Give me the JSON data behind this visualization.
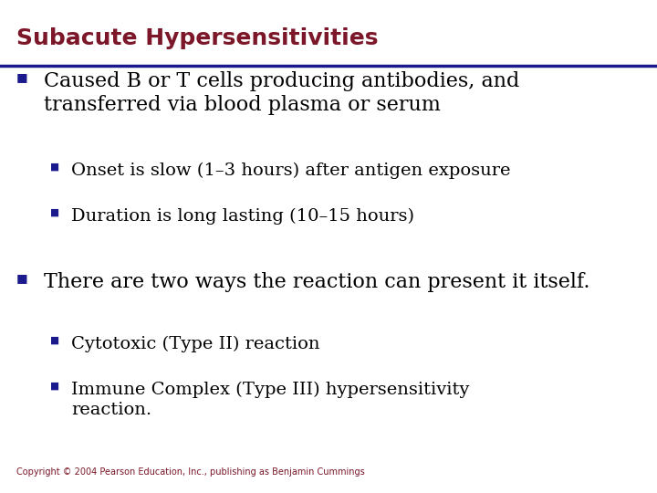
{
  "title": "Subacute Hypersensitivities",
  "title_color": "#7B1728",
  "title_fontsize": 18,
  "line_color": "#1A1A8C",
  "bg_color": "#FFFFFF",
  "body_text_color": "#000000",
  "bullet_color": "#1A1A8C",
  "copyright": "Copyright © 2004 Pearson Education, Inc., publishing as Benjamin Cummings",
  "copyright_color": "#7B1728",
  "copyright_fontsize": 7,
  "items": [
    {
      "level": 1,
      "text": "Caused B or T cells producing antibodies, and\ntransferred via blood plasma or serum",
      "fontsize": 16,
      "bold": false
    },
    {
      "level": 2,
      "text": "Onset is slow (1–3 hours) after antigen exposure",
      "fontsize": 14,
      "bold": false
    },
    {
      "level": 2,
      "text": "Duration is long lasting (10–15 hours)",
      "fontsize": 14,
      "bold": false
    },
    {
      "level": 1,
      "text": "There are two ways the reaction can present it itself.",
      "fontsize": 16,
      "bold": false
    },
    {
      "level": 2,
      "text": "Cytotoxic (Type II) reaction",
      "fontsize": 14,
      "bold": false
    },
    {
      "level": 2,
      "text": "Immune Complex (Type III) hypersensitivity\nreaction.",
      "fontsize": 14,
      "bold": false
    }
  ]
}
